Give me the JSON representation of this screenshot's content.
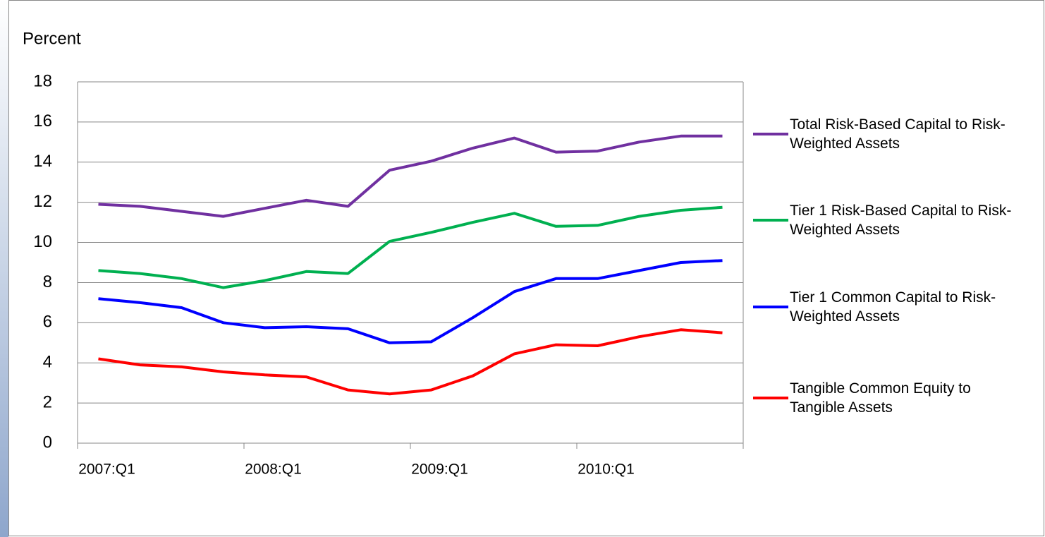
{
  "chart_data": {
    "type": "line",
    "ylabel": "Percent",
    "categories": [
      "2007:Q1",
      null,
      null,
      null,
      "2008:Q1",
      null,
      null,
      null,
      "2009:Q1",
      null,
      null,
      null,
      "2010:Q1",
      null,
      null,
      null
    ],
    "ylim": [
      0,
      18
    ],
    "yticks": [
      0,
      2,
      4,
      6,
      8,
      10,
      12,
      14,
      16,
      18
    ],
    "grid": true,
    "legend": "right",
    "series": [
      {
        "name": "Total Risk-Based Capital to Risk-Weighted Assets",
        "color": "#7030a0",
        "values": [
          11.9,
          11.8,
          11.55,
          11.3,
          11.7,
          12.1,
          11.8,
          13.6,
          14.05,
          14.7,
          15.2,
          14.5,
          14.55,
          15.0,
          15.3,
          15.3
        ]
      },
      {
        "name": "Tier 1 Risk-Based Capital to Risk-Weighted Assets",
        "color": "#00b050",
        "values": [
          8.6,
          8.45,
          8.2,
          7.75,
          8.1,
          8.55,
          8.45,
          10.05,
          10.5,
          11.0,
          11.45,
          10.8,
          10.85,
          11.3,
          11.6,
          11.75
        ]
      },
      {
        "name": "Tier 1 Common Capital to Risk-Weighted Assets",
        "color": "#0000ff",
        "values": [
          7.2,
          7.0,
          6.75,
          6.0,
          5.75,
          5.8,
          5.7,
          5.0,
          5.05,
          6.25,
          7.55,
          8.2,
          8.2,
          8.6,
          9.0,
          9.1
        ]
      },
      {
        "name": "Tangible Common Equity to Tangible Assets",
        "color": "#ff0000",
        "values": [
          4.2,
          3.9,
          3.8,
          3.55,
          3.4,
          3.3,
          2.65,
          2.45,
          2.65,
          3.35,
          4.45,
          4.9,
          4.85,
          5.3,
          5.65,
          5.5
        ]
      }
    ]
  }
}
